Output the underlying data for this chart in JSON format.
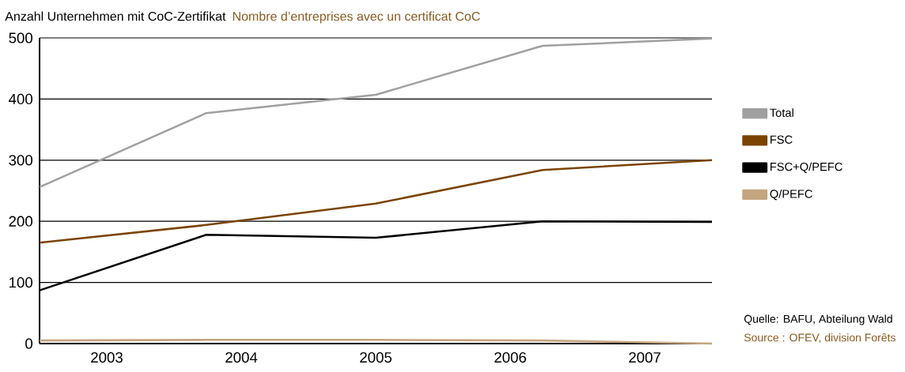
{
  "chart_data": {
    "type": "line",
    "title": "Anzahl Unternehmen mit CoC-Zertifikat",
    "subtitle": "Nombre d’entreprises avec un certificat CoC",
    "x": [
      2002.5,
      2003.74,
      2005.0,
      2006.24,
      2007.5
    ],
    "xlim": [
      2002.5,
      2007.5
    ],
    "xticks": [
      2003,
      2004,
      2005,
      2006,
      2007
    ],
    "ylim": [
      0,
      500
    ],
    "yticks": [
      0,
      100,
      200,
      300,
      400,
      500
    ],
    "series": [
      {
        "name": "Total",
        "color": "#a0a0a0",
        "values": [
          256,
          377,
          407,
          487,
          499
        ]
      },
      {
        "name": "FSC",
        "color": "#7b4400",
        "values": [
          165,
          194,
          229,
          284,
          300
        ]
      },
      {
        "name": "FSC+Q/PEFC",
        "color": "#000000",
        "values": [
          87,
          178,
          173,
          200,
          199
        ]
      },
      {
        "name": "Q/PEFC",
        "color": "#c4a580",
        "values": [
          5,
          6,
          6,
          5,
          0
        ]
      }
    ],
    "grid": "y",
    "legend": "right",
    "marker": "none",
    "line_style": "solid",
    "annotations": [
      "Quelle: BAFU, Abteilung Wald",
      "Source : OFEV, division Forêts"
    ]
  }
}
